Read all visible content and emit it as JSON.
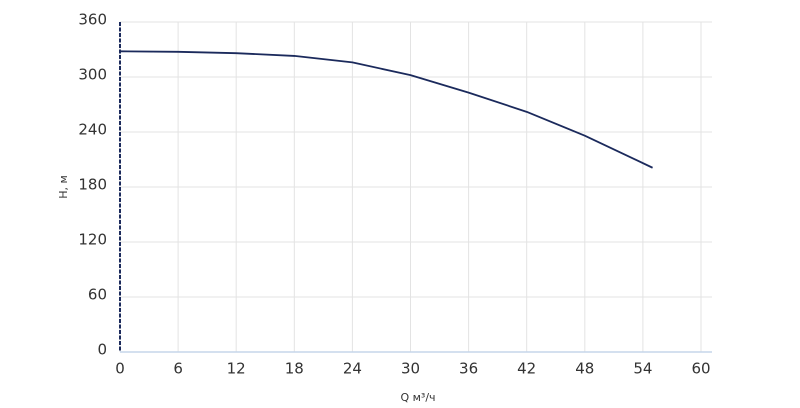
{
  "chart_data": {
    "type": "line",
    "xlabel": "Q м³/ч",
    "ylabel": "H, м",
    "x": [
      0,
      6,
      12,
      18,
      24,
      30,
      36,
      42,
      48,
      55
    ],
    "series": [
      {
        "color": "#1b2a5c",
        "values": [
          328,
          327.5,
          326,
          323,
          316,
          302,
          283,
          262,
          236,
          201
        ]
      }
    ],
    "xlim": [
      0,
      60
    ],
    "xticks": [
      0,
      6,
      12,
      18,
      24,
      30,
      36,
      42,
      48,
      54,
      60
    ],
    "ylim": [
      0,
      360
    ],
    "yticks": [
      0,
      60,
      120,
      180,
      240,
      300,
      360
    ],
    "grid": true
  }
}
